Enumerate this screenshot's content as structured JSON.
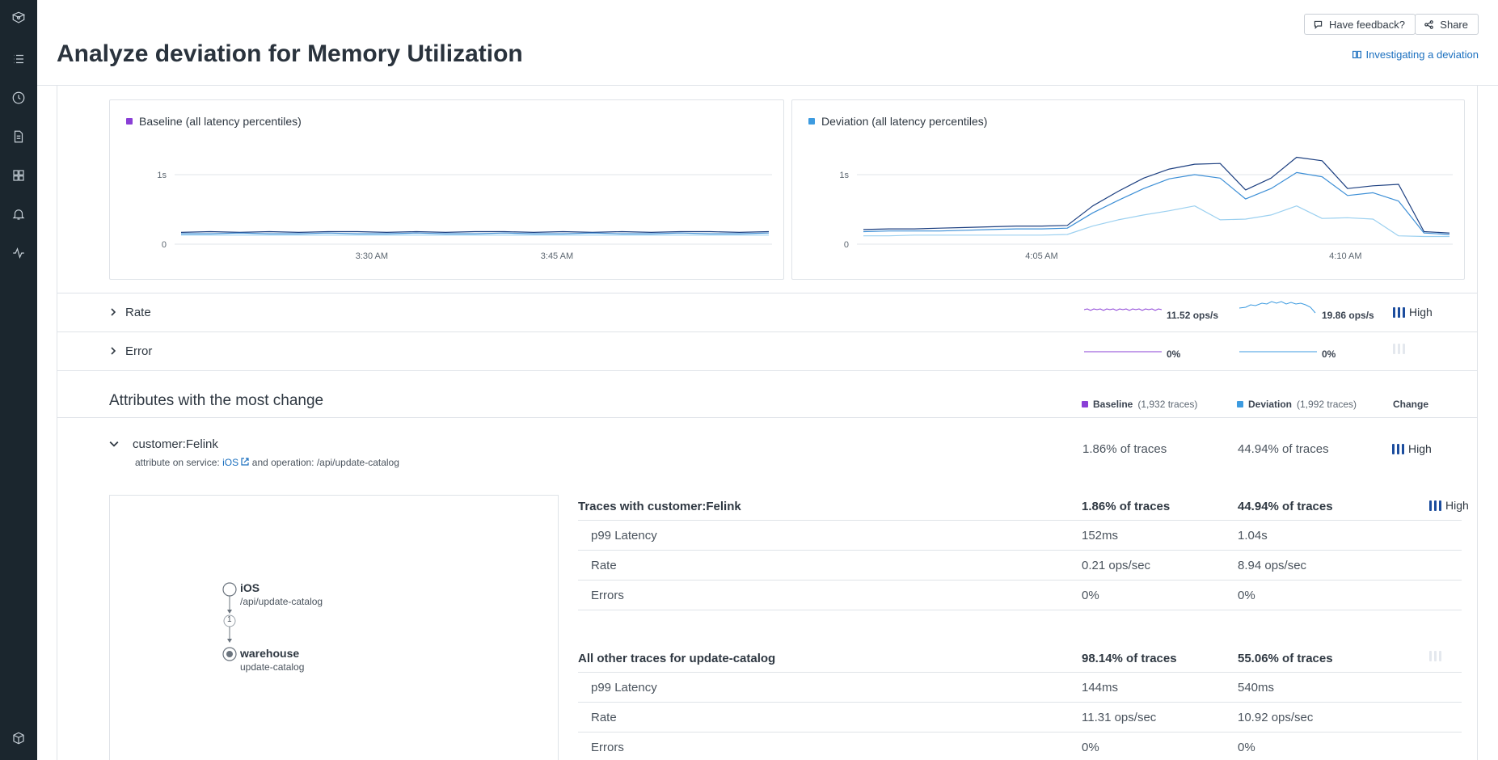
{
  "header": {
    "title": "Analyze deviation for Memory Utilization",
    "feedback_label": "Have feedback?",
    "share_label": "Share",
    "doc_link": "Investigating a deviation"
  },
  "sidebar": {
    "items": [
      "logo-icon",
      "list-icon",
      "clock-icon",
      "document-icon",
      "grid-icon",
      "bell-icon",
      "pulse-icon",
      "cube-icon"
    ]
  },
  "colors": {
    "baseline": "#8a3fd6",
    "deviation": "#3d9be0",
    "high": "#1c4d9e",
    "link": "#1a6fbf"
  },
  "chart_data": [
    {
      "type": "line",
      "title": "Baseline (all latency percentiles)",
      "x_ticks": [
        "3:30 AM",
        "3:45 AM"
      ],
      "y_ticks": [
        "1s",
        "0"
      ],
      "ylim": [
        0,
        1.4
      ],
      "series": [
        {
          "values": [
            0.17,
            0.18,
            0.17,
            0.18,
            0.17,
            0.18,
            0.18,
            0.17,
            0.18,
            0.17,
            0.18,
            0.18,
            0.17,
            0.18,
            0.17,
            0.18,
            0.17,
            0.18,
            0.18,
            0.17,
            0.18
          ]
        },
        {
          "values": [
            0.15,
            0.15,
            0.16,
            0.15,
            0.15,
            0.16,
            0.15,
            0.15,
            0.16,
            0.15,
            0.15,
            0.16,
            0.15,
            0.15,
            0.16,
            0.15,
            0.15,
            0.16,
            0.15,
            0.15,
            0.16
          ]
        },
        {
          "values": [
            0.13,
            0.13,
            0.13,
            0.13,
            0.13,
            0.13,
            0.13,
            0.13,
            0.13,
            0.13,
            0.13,
            0.13,
            0.13,
            0.13,
            0.13,
            0.13,
            0.13,
            0.13,
            0.13,
            0.13,
            0.13
          ]
        }
      ]
    },
    {
      "type": "line",
      "title": "Deviation (all latency percentiles)",
      "x_ticks": [
        "4:05 AM",
        "4:10 AM"
      ],
      "y_ticks": [
        "1s",
        "0"
      ],
      "ylim": [
        0,
        1.4
      ],
      "series": [
        {
          "values": [
            0.21,
            0.22,
            0.22,
            0.23,
            0.24,
            0.25,
            0.26,
            0.26,
            0.27,
            0.55,
            0.76,
            0.95,
            1.08,
            1.15,
            1.16,
            0.78,
            0.95,
            1.25,
            1.2,
            0.8,
            0.84,
            0.86,
            0.18,
            0.16
          ]
        },
        {
          "values": [
            0.18,
            0.19,
            0.19,
            0.19,
            0.2,
            0.21,
            0.22,
            0.22,
            0.23,
            0.45,
            0.63,
            0.8,
            0.94,
            1.0,
            0.95,
            0.65,
            0.8,
            1.03,
            0.97,
            0.7,
            0.74,
            0.62,
            0.16,
            0.14
          ]
        },
        {
          "values": [
            0.12,
            0.12,
            0.13,
            0.13,
            0.13,
            0.13,
            0.13,
            0.13,
            0.14,
            0.26,
            0.35,
            0.42,
            0.48,
            0.55,
            0.35,
            0.36,
            0.42,
            0.55,
            0.37,
            0.38,
            0.36,
            0.12,
            0.11,
            0.11
          ]
        }
      ]
    }
  ],
  "rows": {
    "rate": {
      "label": "Rate",
      "baseline": "11.52 ops/s",
      "deviation": "19.86 ops/s",
      "change": "High"
    },
    "error": {
      "label": "Error",
      "baseline": "0%",
      "deviation": "0%"
    }
  },
  "attributes": {
    "title": "Attributes with the most change",
    "col_baseline_label": "Baseline",
    "col_baseline_count": "(1,932 traces)",
    "col_deviation_label": "Deviation",
    "col_deviation_count": "(1,992 traces)",
    "col_change_label": "Change",
    "item": {
      "name": "customer:Felink",
      "desc_prefix": "attribute on service:",
      "desc_service": "iOS",
      "desc_suffix": "and operation: /api/update-catalog",
      "baseline": "1.86% of traces",
      "deviation": "44.94% of traces",
      "change": "High"
    }
  },
  "graph": {
    "node1_name": "iOS",
    "node1_op": "/api/update-catalog",
    "edge_count": "1",
    "node2_name": "warehouse",
    "node2_op": "update-catalog"
  },
  "table1": {
    "title": "Traces with customer:Felink",
    "baseline": "1.86% of traces",
    "deviation": "44.94% of traces",
    "change": "High",
    "rows": [
      {
        "metric": "p99 Latency",
        "baseline": "152ms",
        "deviation": "1.04s"
      },
      {
        "metric": "Rate",
        "baseline": "0.21 ops/sec",
        "deviation": "8.94 ops/sec"
      },
      {
        "metric": "Errors",
        "baseline": "0%",
        "deviation": "0%"
      }
    ]
  },
  "table2": {
    "title": "All other traces for update-catalog",
    "baseline": "98.14% of traces",
    "deviation": "55.06% of traces",
    "rows": [
      {
        "metric": "p99 Latency",
        "baseline": "144ms",
        "deviation": "540ms"
      },
      {
        "metric": "Rate",
        "baseline": "11.31 ops/sec",
        "deviation": "10.92 ops/sec"
      },
      {
        "metric": "Errors",
        "baseline": "0%",
        "deviation": "0%"
      }
    ]
  }
}
